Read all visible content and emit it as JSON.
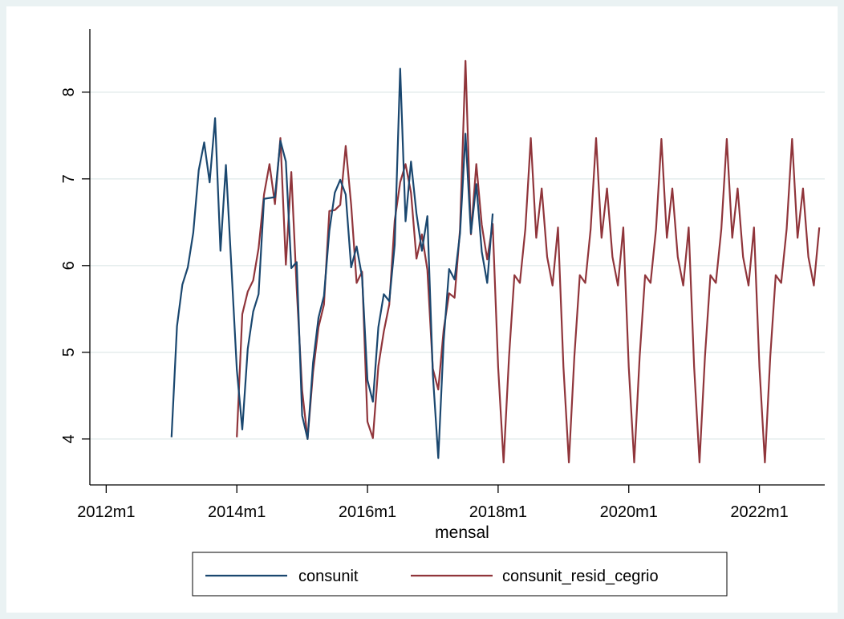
{
  "chart_data": {
    "type": "line",
    "title": "",
    "xlabel": "mensal",
    "ylabel": "",
    "x_tick_labels": [
      "2012m1",
      "2014m1",
      "2016m1",
      "2018m1",
      "2020m1",
      "2022m1"
    ],
    "y_tick_labels": [
      "4",
      "5",
      "6",
      "7",
      "8"
    ],
    "xlim": [
      "2011m10",
      "2023m1"
    ],
    "ylim": [
      3.6,
      8.6
    ],
    "grid": "horizontal",
    "legend_position": "bottom",
    "series": [
      {
        "name": "consunit",
        "color": "#1a476f",
        "start": "2013m1",
        "values": [
          4.02,
          5.3,
          5.78,
          5.98,
          6.38,
          7.1,
          7.42,
          6.96,
          7.7,
          6.17,
          7.16,
          5.99,
          4.8,
          4.11,
          5.04,
          5.47,
          5.67,
          6.77,
          6.78,
          6.79,
          7.44,
          7.2,
          5.97,
          6.04,
          4.27,
          4.0,
          4.88,
          5.4,
          5.65,
          6.4,
          6.84,
          6.99,
          6.82,
          5.98,
          6.22,
          5.87,
          4.68,
          4.43,
          5.29,
          5.67,
          5.59,
          6.24,
          8.27,
          6.51,
          7.2,
          6.6,
          6.17,
          6.57,
          4.75,
          3.78,
          5.13,
          5.96,
          5.84,
          6.37,
          7.52,
          6.37,
          6.94,
          6.16,
          5.8,
          6.6
        ]
      },
      {
        "name": "consunit_resid_cegrio",
        "color": "#90353b",
        "start": "2014m1",
        "values": [
          4.02,
          5.44,
          5.7,
          5.83,
          6.2,
          6.82,
          7.17,
          6.71,
          7.47,
          6.01,
          7.08,
          5.74,
          4.56,
          4.0,
          4.77,
          5.29,
          5.55,
          6.63,
          6.64,
          6.7,
          7.38,
          6.7,
          5.8,
          5.93,
          4.2,
          4.01,
          4.84,
          5.24,
          5.55,
          6.52,
          6.96,
          7.17,
          6.84,
          6.08,
          6.36,
          5.95,
          4.81,
          4.57,
          5.26,
          5.68,
          5.63,
          6.42,
          8.36,
          6.36,
          7.17,
          6.47,
          6.07,
          6.48,
          4.83,
          3.73,
          4.95,
          5.89,
          5.8,
          6.42,
          7.47,
          6.32,
          6.89,
          6.1,
          5.77,
          6.44,
          4.83,
          3.73,
          4.95,
          5.89,
          5.8,
          6.42,
          7.47,
          6.32,
          6.89,
          6.1,
          5.77,
          6.44,
          4.83,
          3.73,
          4.95,
          5.89,
          5.8,
          6.42,
          7.46,
          6.32,
          6.89,
          6.1,
          5.77,
          6.44,
          4.83,
          3.73,
          4.95,
          5.89,
          5.8,
          6.42,
          7.46,
          6.32,
          6.89,
          6.1,
          5.77,
          6.44,
          4.83,
          3.73,
          4.95,
          5.89,
          5.8,
          6.42,
          7.46,
          6.32,
          6.89,
          6.1,
          5.77,
          6.44
        ]
      }
    ]
  }
}
